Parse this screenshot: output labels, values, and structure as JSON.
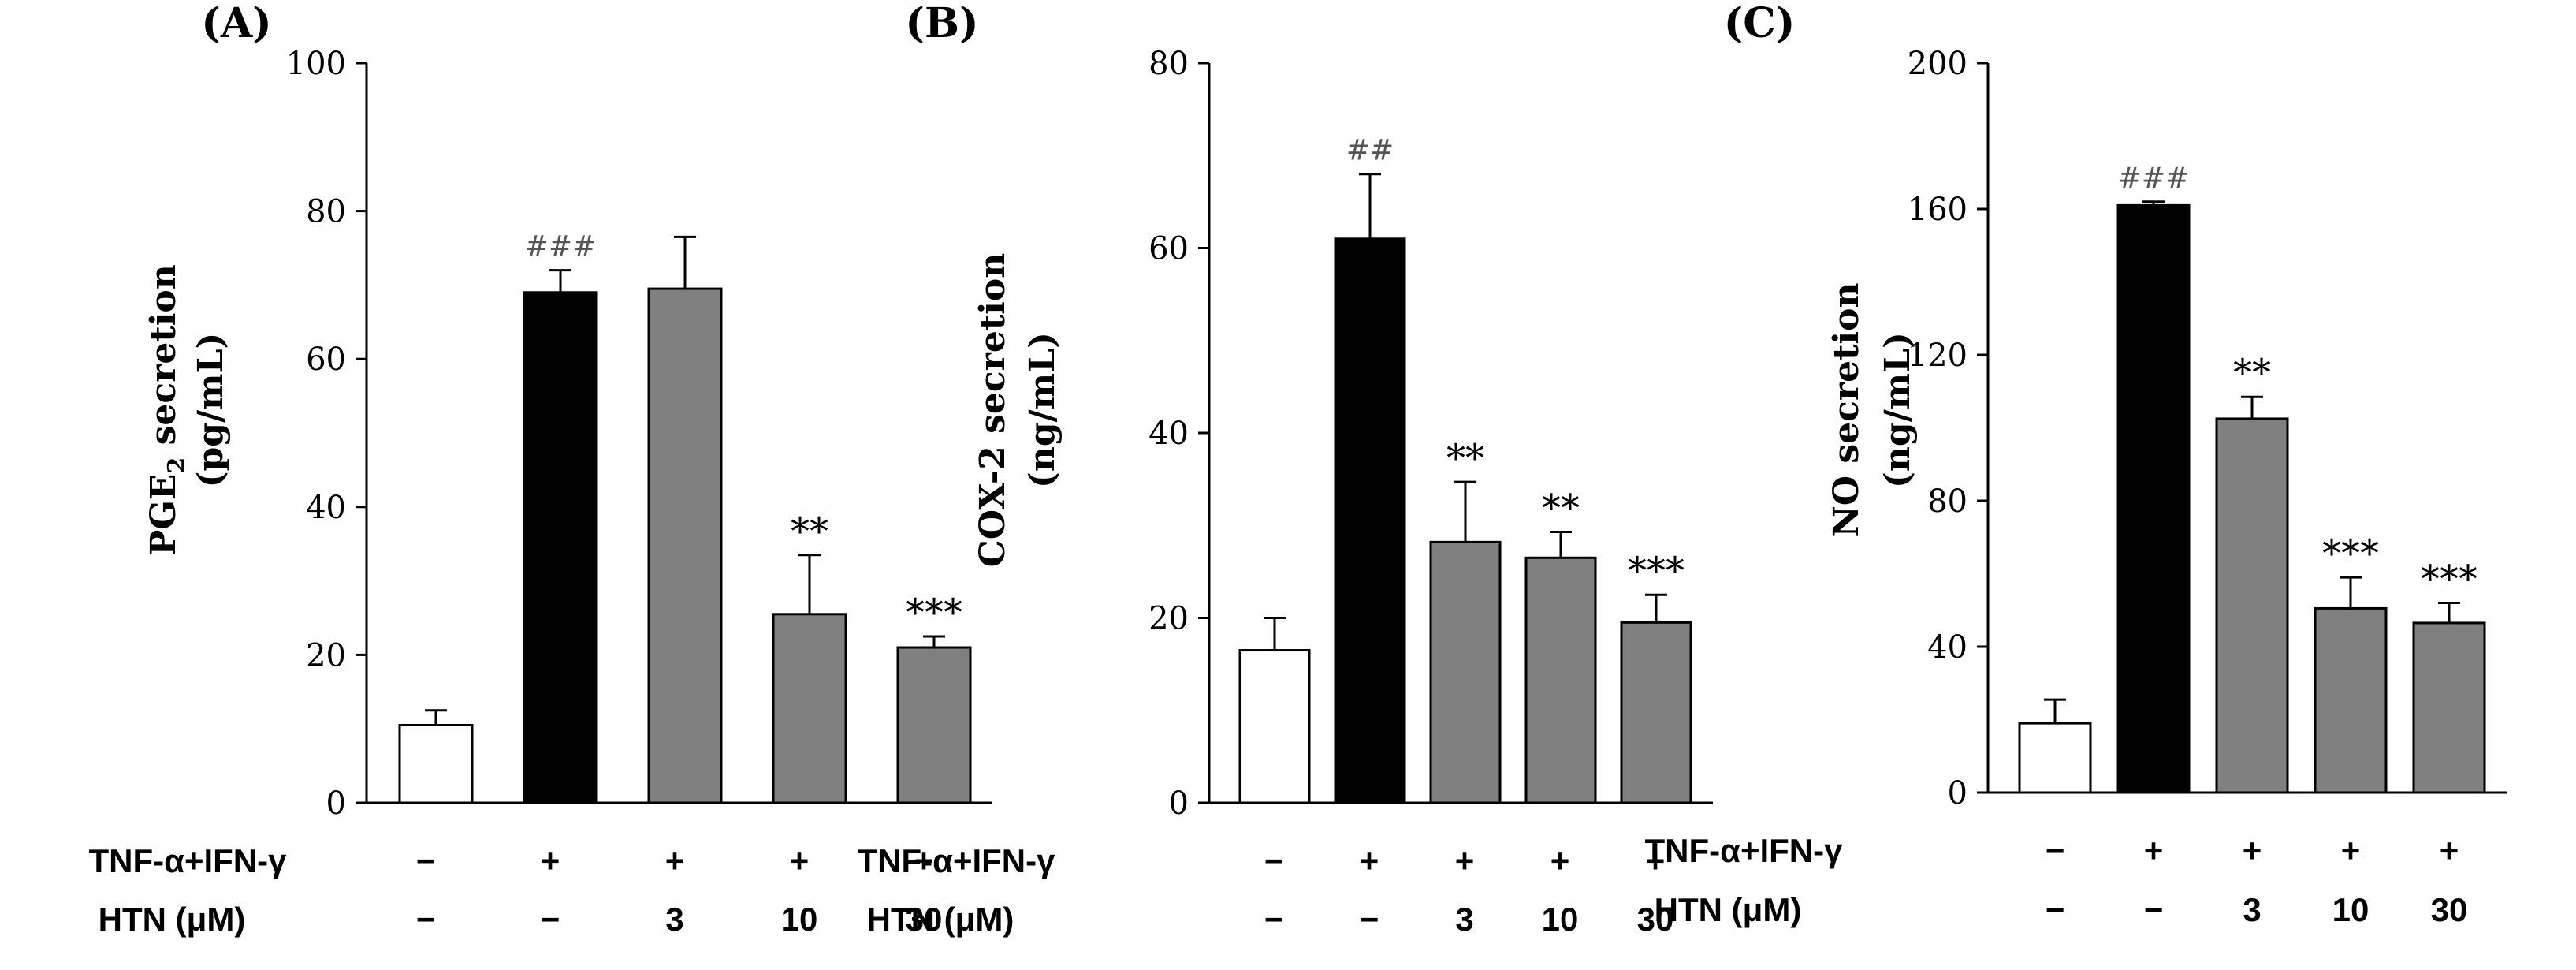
{
  "chart_data": [
    {
      "type": "bar",
      "panel_label": "(A)",
      "ylabel_line1": "PGE",
      "ylabel_sub": "2",
      "ylabel_line1_rest": " secretion",
      "ylabel_line2": "(pg/mL)",
      "ylim": [
        0,
        100
      ],
      "yticks": [
        0,
        20,
        40,
        60,
        80,
        100
      ],
      "values": [
        10.5,
        69.0,
        69.5,
        25.5,
        21.0
      ],
      "errors": [
        2.0,
        3.0,
        7.0,
        8.0,
        1.5
      ],
      "fills": [
        "#ffffff",
        "#000000",
        "#808080",
        "#808080",
        "#808080"
      ],
      "annotations": [
        "",
        "###",
        "",
        "**",
        "***"
      ],
      "row1_label": "TNF-α+IFN-γ",
      "row1": [
        "−",
        "+",
        "+",
        "+",
        "+"
      ],
      "row2_label": "HTN (μM)",
      "row2": [
        "−",
        "−",
        "3",
        "10",
        "30"
      ]
    },
    {
      "type": "bar",
      "panel_label": "(B)",
      "ylabel_line1": "COX-2 secretion",
      "ylabel_sub": "",
      "ylabel_line1_rest": "",
      "ylabel_line2": "(ng/mL)",
      "ylim": [
        0,
        80
      ],
      "yticks": [
        0,
        20,
        40,
        60,
        80
      ],
      "values": [
        16.5,
        61.0,
        28.2,
        26.5,
        19.5
      ],
      "errors": [
        3.5,
        7.0,
        6.5,
        2.8,
        3.0
      ],
      "fills": [
        "#ffffff",
        "#000000",
        "#808080",
        "#808080",
        "#808080"
      ],
      "annotations": [
        "",
        "##",
        "**",
        "**",
        "***"
      ],
      "row1_label": "TNF-α+IFN-γ",
      "row1": [
        "−",
        "+",
        "+",
        "+",
        "+"
      ],
      "row2_label": "HTN (μM)",
      "row2": [
        "−",
        "−",
        "3",
        "10",
        "30"
      ]
    },
    {
      "type": "bar",
      "panel_label": "(C)",
      "ylabel_line1": "NO secretion",
      "ylabel_sub": "",
      "ylabel_line1_rest": "",
      "ylabel_line2": "(ng/mL)",
      "ylim": [
        0,
        200
      ],
      "yticks": [
        0,
        40,
        80,
        120,
        160,
        200
      ],
      "values": [
        19.0,
        161.0,
        102.5,
        50.5,
        46.5
      ],
      "errors": [
        6.5,
        1.0,
        6.0,
        8.5,
        5.5
      ],
      "fills": [
        "#ffffff",
        "#000000",
        "#808080",
        "#808080",
        "#808080"
      ],
      "annotations": [
        "",
        "###",
        "**",
        "***",
        "***"
      ],
      "row1_label": "TNF-α+IFN-γ",
      "row1": [
        "−",
        "+",
        "+",
        "+",
        "+"
      ],
      "row2_label": "HTN (μM)",
      "row2": [
        "−",
        "−",
        "3",
        "10",
        "30"
      ]
    }
  ]
}
